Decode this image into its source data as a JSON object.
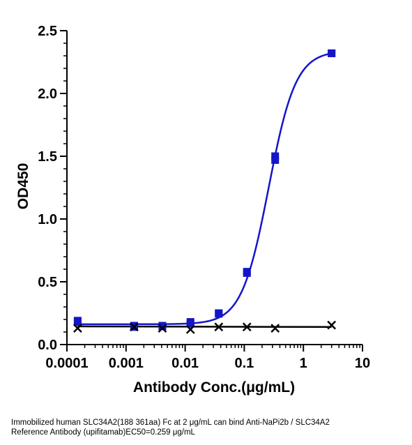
{
  "chart_data": {
    "type": "scatter",
    "xlabel": "Antibody Conc.(μg/mL)",
    "ylabel": "OD450",
    "xscale": "log",
    "xlim": [
      0.0001,
      10
    ],
    "ylim": [
      0,
      2.5
    ],
    "x_ticks": [
      {
        "value": 0.0001,
        "label": "0.0001"
      },
      {
        "value": 0.001,
        "label": "0.001"
      },
      {
        "value": 0.01,
        "label": "0.01"
      },
      {
        "value": 0.1,
        "label": "0.1"
      },
      {
        "value": 1,
        "label": "1"
      },
      {
        "value": 10,
        "label": "10"
      }
    ],
    "y_ticks": [
      {
        "value": 0,
        "label": "0.0"
      },
      {
        "value": 0.5,
        "label": "0.5"
      },
      {
        "value": 1.0,
        "label": "1.0"
      },
      {
        "value": 1.5,
        "label": "1.5"
      },
      {
        "value": 2.0,
        "label": "2.0"
      },
      {
        "value": 2.5,
        "label": "2.5"
      }
    ],
    "legend": "none",
    "grid": false,
    "series": [
      {
        "marker": "square",
        "color": "#1515c8",
        "fit": "four-parameter logistic",
        "fit_params": {
          "bottom": 0.162,
          "top": 2.34,
          "ec50": 0.259,
          "hill": 1.9
        },
        "points": [
          {
            "x": 0.000152,
            "y": 0.19
          },
          {
            "x": 0.000152,
            "y": 0.18
          },
          {
            "x": 0.00137,
            "y": 0.15
          },
          {
            "x": 0.00137,
            "y": 0.14
          },
          {
            "x": 0.00412,
            "y": 0.15
          },
          {
            "x": 0.00412,
            "y": 0.145
          },
          {
            "x": 0.0123,
            "y": 0.18
          },
          {
            "x": 0.0123,
            "y": 0.17
          },
          {
            "x": 0.037,
            "y": 0.25
          },
          {
            "x": 0.037,
            "y": 0.245
          },
          {
            "x": 0.111,
            "y": 0.58
          },
          {
            "x": 0.111,
            "y": 0.57
          },
          {
            "x": 0.333,
            "y": 1.5
          },
          {
            "x": 0.333,
            "y": 1.47
          },
          {
            "x": 3,
            "y": 2.32
          },
          {
            "x": 3,
            "y": 2.32
          }
        ]
      },
      {
        "marker": "x",
        "color": "#000000",
        "fit": "flat",
        "fit_params": {
          "start": 0.145,
          "end": 0.14
        },
        "points": [
          {
            "x": 0.000152,
            "y": 0.13
          },
          {
            "x": 0.00137,
            "y": 0.14
          },
          {
            "x": 0.00412,
            "y": 0.13
          },
          {
            "x": 0.0123,
            "y": 0.12
          },
          {
            "x": 0.037,
            "y": 0.14
          },
          {
            "x": 0.111,
            "y": 0.14
          },
          {
            "x": 0.333,
            "y": 0.13
          },
          {
            "x": 3,
            "y": 0.155
          }
        ]
      }
    ]
  },
  "caption": {
    "line1": "Immobilized human SLC34A2(188 361aa) Fc at 2  μg/mL can bind  Anti-NaPi2b / SLC34A2",
    "line2": "Reference Antibody (upifitamab)\u001fEC50=0.259 μg/mL"
  }
}
